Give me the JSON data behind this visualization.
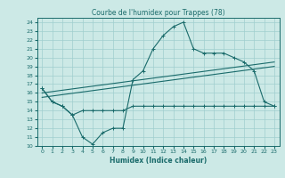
{
  "title": "Courbe de l'humidex pour Trappes (78)",
  "xlabel": "Humidex (Indice chaleur)",
  "xlim": [
    -0.5,
    23.5
  ],
  "ylim": [
    10,
    24.5
  ],
  "yticks": [
    10,
    11,
    12,
    13,
    14,
    15,
    16,
    17,
    18,
    19,
    20,
    21,
    22,
    23,
    24
  ],
  "xticks": [
    0,
    1,
    2,
    3,
    4,
    5,
    6,
    7,
    8,
    9,
    10,
    11,
    12,
    13,
    14,
    15,
    16,
    17,
    18,
    19,
    20,
    21,
    22,
    23
  ],
  "color": "#1a6b6b",
  "bg_color": "#cce9e6",
  "grid_color": "#a0cece",
  "curve1_x": [
    0,
    1,
    2,
    3,
    4,
    5,
    6,
    7,
    8,
    9,
    10,
    11,
    12,
    13,
    14,
    15,
    16,
    17,
    18,
    19,
    20,
    21,
    22,
    23
  ],
  "curve1_y": [
    16.5,
    15.0,
    14.5,
    13.5,
    11.0,
    10.2,
    11.5,
    12.0,
    12.0,
    17.5,
    18.5,
    21.0,
    22.5,
    23.5,
    24.0,
    21.0,
    20.5,
    20.5,
    20.5,
    20.0,
    19.5,
    18.5,
    15.0,
    14.5
  ],
  "curve2_x": [
    0,
    1,
    2,
    3,
    4,
    5,
    6,
    7,
    8,
    9,
    10,
    11,
    12,
    13,
    14,
    15,
    16,
    17,
    18,
    19,
    20,
    21,
    22,
    23
  ],
  "curve2_y": [
    16.5,
    15.0,
    14.5,
    13.5,
    14.0,
    14.0,
    14.0,
    14.0,
    14.0,
    14.5,
    14.5,
    14.5,
    14.5,
    14.5,
    14.5,
    14.5,
    14.5,
    14.5,
    14.5,
    14.5,
    14.5,
    14.5,
    14.5,
    14.5
  ],
  "line1_x": [
    0,
    23
  ],
  "line1_y": [
    16.0,
    19.5
  ],
  "line2_x": [
    0,
    23
  ],
  "line2_y": [
    15.5,
    19.0
  ]
}
